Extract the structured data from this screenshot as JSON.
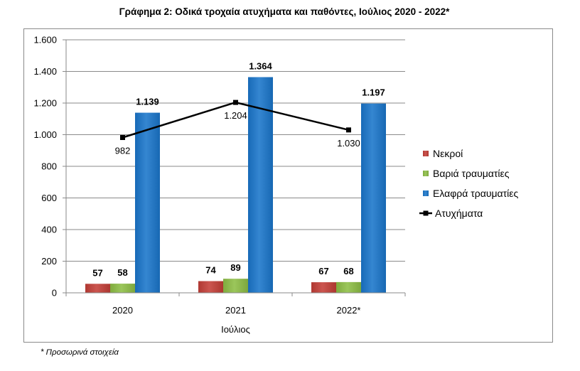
{
  "footnote": "* Προσωρινά στοιχεία",
  "chart_data": {
    "type": "bar",
    "title": "Γράφημα 2: Οδικά τροχαία ατυχήματα και παθόντες, Ιούλιος 2020 - 2022*",
    "categories": [
      "2020",
      "2021",
      "2022*"
    ],
    "xlabel": "Ιούλιος",
    "ylim": [
      0,
      1600
    ],
    "yticks": [
      0,
      200,
      400,
      600,
      800,
      1000,
      1200,
      1400,
      1600
    ],
    "ytick_labels": [
      "0",
      "200",
      "400",
      "600",
      "800",
      "1.000",
      "1.200",
      "1.400",
      "1.600"
    ],
    "grid": true,
    "legend_position": "right",
    "series": [
      {
        "name": "Νεκροί",
        "type": "bar",
        "color": "#C43E37",
        "values": [
          57,
          74,
          67
        ],
        "data_labels": [
          "57",
          "74",
          "67"
        ]
      },
      {
        "name": "Βαριά τραυματίες",
        "type": "bar",
        "color": "#8DBE45",
        "values": [
          58,
          89,
          68
        ],
        "data_labels": [
          "58",
          "89",
          "68"
        ]
      },
      {
        "name": "Ελαφρά τραυματίες",
        "type": "bar",
        "color": "#1A76CB",
        "values": [
          1139,
          1364,
          1197
        ],
        "data_labels": [
          "1.139",
          "1.364",
          "1.197"
        ]
      },
      {
        "name": "Ατυχήματα",
        "type": "line",
        "color": "#000000",
        "values": [
          982,
          1204,
          1030
        ],
        "data_labels": [
          "982",
          "1.204",
          "1.030"
        ]
      }
    ]
  }
}
